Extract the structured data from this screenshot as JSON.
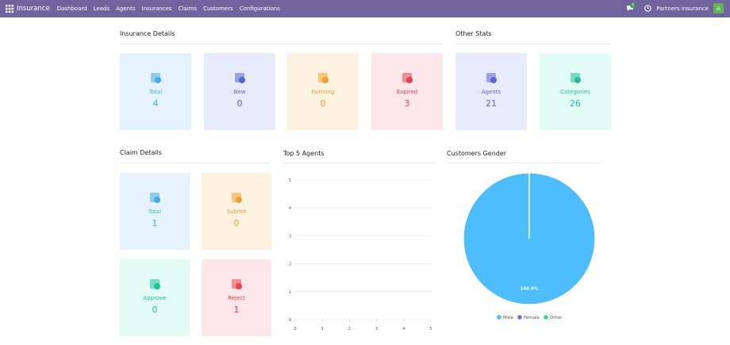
{
  "navbar": {
    "app": "Insurance",
    "menu": [
      "Dashboard",
      "Leads",
      "Agents",
      "Insurances",
      "Claims",
      "Customers",
      "Configurations"
    ],
    "badge": "5",
    "company": "Partners insurance",
    "avatar": "A"
  },
  "insurance_details": {
    "title": "Insurance Details",
    "cards": [
      {
        "label": "Total",
        "value": 4
      },
      {
        "label": "New",
        "value": 0
      },
      {
        "label": "Running",
        "value": 0
      },
      {
        "label": "Expired",
        "value": 3
      }
    ]
  },
  "other_stats": {
    "title": "Other Stats",
    "cards": [
      {
        "label": "Agents",
        "value": 21
      },
      {
        "label": "Categories",
        "value": 26
      }
    ]
  },
  "claim_details": {
    "title": "Claim Details",
    "cards": [
      {
        "label": "Total",
        "value": 1
      },
      {
        "label": "Submit",
        "value": 0
      },
      {
        "label": "Approve",
        "value": 0
      },
      {
        "label": "Reject",
        "value": 1
      }
    ]
  },
  "chart_data": [
    {
      "type": "bar",
      "title": "Top 5 Agents",
      "categories": [],
      "values": [],
      "xlim": [
        0,
        5
      ],
      "xticks": [
        0,
        1,
        2,
        3,
        4,
        5
      ],
      "ylim": [
        0,
        5
      ],
      "yticks": [
        0,
        1,
        2,
        3,
        4,
        5
      ],
      "grid": true
    },
    {
      "type": "pie",
      "title": "Customers Gender",
      "categories": [
        "Male",
        "Female",
        "Other"
      ],
      "values": [
        100,
        0,
        0
      ],
      "value_labels": [
        "100.0%",
        null,
        null
      ],
      "colors": [
        "#4dbdfb",
        "#6c72e4",
        "#35d3b1"
      ],
      "legend": "bottom"
    }
  ]
}
